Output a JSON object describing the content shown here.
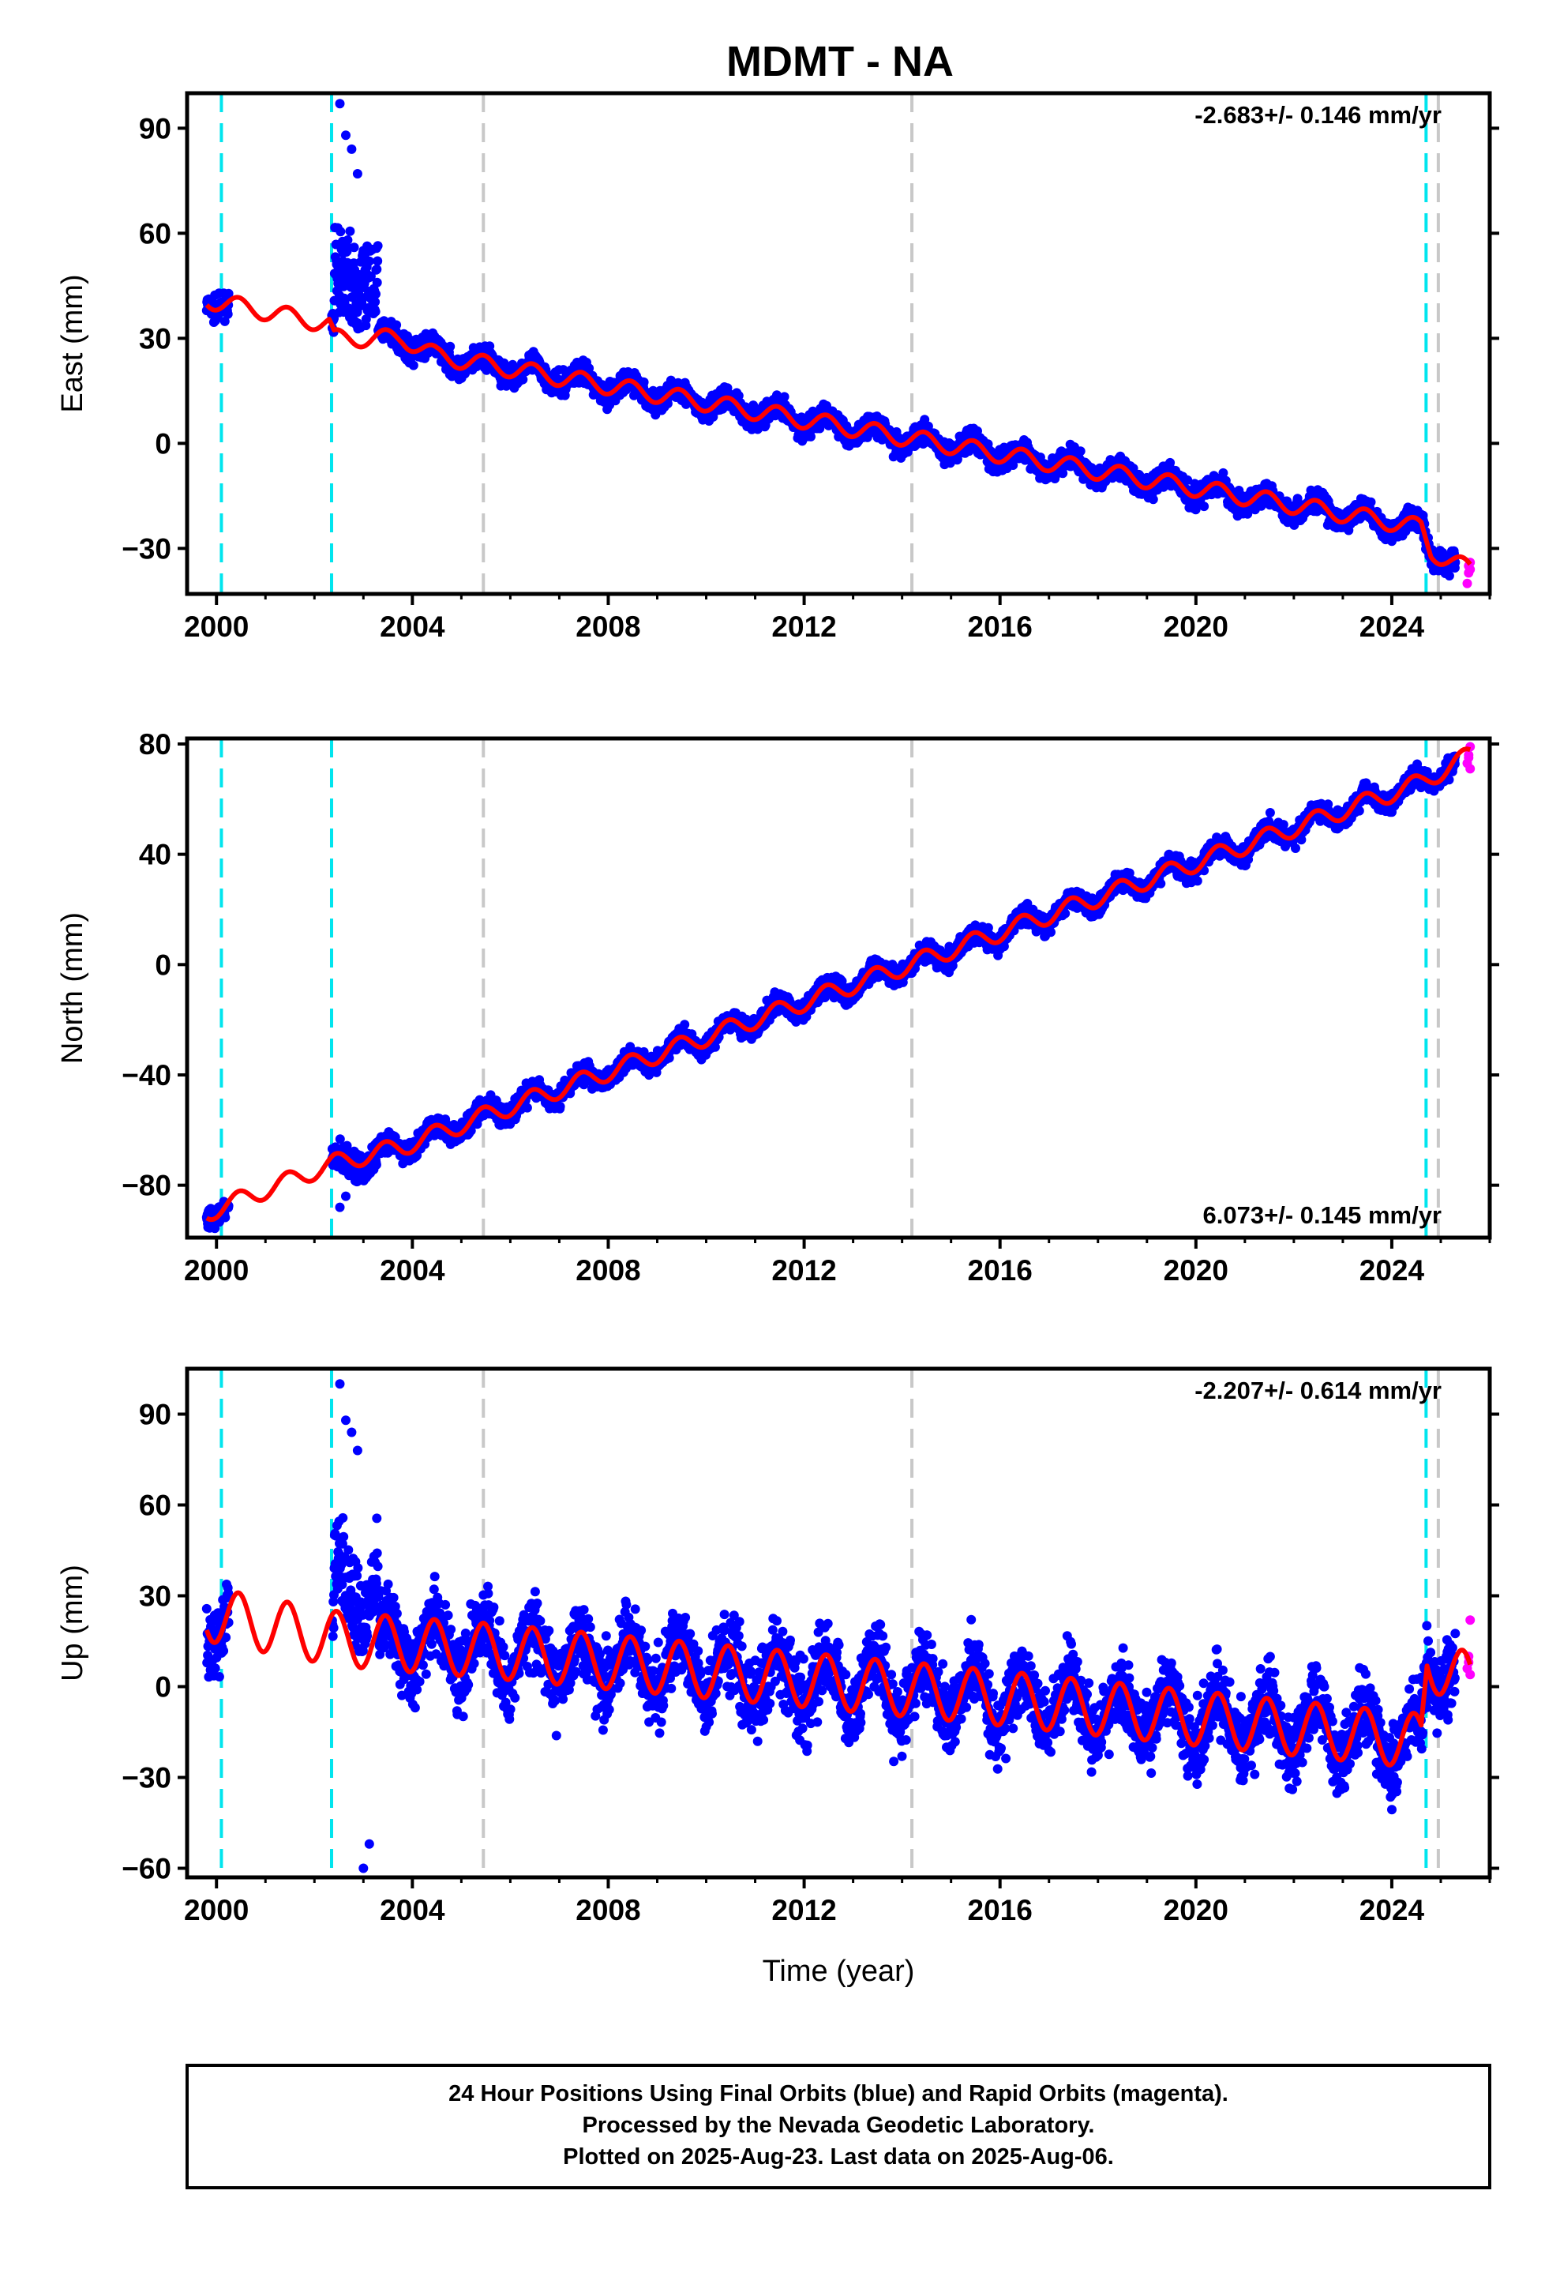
{
  "colors": {
    "final": "#0000ff",
    "rapid": "#ff00ff",
    "model": "#ff0000",
    "equipment_change": "#00e5ee",
    "earthquake": "#c8c8c8"
  },
  "footer": {
    "line1": "24 Hour Positions Using Final Orbits (blue) and Rapid Orbits (magenta).",
    "line2": "Processed by the Nevada Geodetic Laboratory.",
    "line3": "Plotted on 2025-Aug-23. Last data on 2025-Aug-06."
  },
  "chart_data": {
    "type": "scatter",
    "title": "MDMT - NA",
    "xlabel": "Time (year)",
    "x_range": [
      1999.4,
      2026.0
    ],
    "x_ticks": [
      2000,
      2004,
      2008,
      2012,
      2016,
      2020,
      2024
    ],
    "data_start": 1999.8,
    "data_end": 2025.6,
    "rapid_start": 2025.3,
    "cyan_lines": [
      2000.1,
      2002.35,
      2024.7
    ],
    "gray_lines": [
      2005.45,
      2014.2,
      2024.95
    ],
    "panels": [
      {
        "name": "east",
        "ylabel": "East (mm)",
        "ylim": [
          -43,
          100
        ],
        "y_ticks": [
          90,
          60,
          30,
          0,
          -30
        ],
        "velocity_label": "-2.683+/- 0.146 mm/yr",
        "velocity_pos": "top-right",
        "model": {
          "trend_keypoints": [
            [
              1999.8,
              41
            ],
            [
              2002.3,
              34
            ],
            [
              2002.4,
              30
            ],
            [
              2003.8,
              30
            ],
            [
              2004.5,
              25
            ],
            [
              2024.6,
              -24
            ],
            [
              2024.8,
              -31
            ],
            [
              2025.6,
              -36
            ]
          ],
          "annual_amplitude": 2.5
        },
        "scatter": {
          "noise": 1.6,
          "disturbed_window": [
            2002.4,
            2003.3
          ],
          "disturbed_offset": [
            5,
            35
          ],
          "disturbed_extremes": [
            97,
            88,
            84,
            77
          ],
          "rapid_values": [
            -34,
            -37,
            -40,
            -36,
            -35
          ]
        }
      },
      {
        "name": "north",
        "ylabel": "North (mm)",
        "ylim": [
          -99,
          82
        ],
        "y_ticks": [
          80,
          40,
          0,
          -40,
          -80
        ],
        "velocity_label": "6.073+/- 0.145 mm/yr",
        "velocity_pos": "bottom-right",
        "model": {
          "trend_keypoints": [
            [
              1999.8,
              -90
            ],
            [
              2002.4,
              -72
            ],
            [
              2003.8,
              -66
            ],
            [
              2005.45,
              -55
            ],
            [
              2024.6,
              66
            ],
            [
              2025.6,
              76
            ]
          ],
          "annual_amplitude": 3.3
        },
        "scatter": {
          "noise": 1.8,
          "disturbed_window": [
            2002.4,
            2003.3
          ],
          "disturbed_offset": [
            -6,
            6
          ],
          "disturbed_extremes": [
            -88,
            -84
          ],
          "rapid_values": [
            79,
            76,
            73,
            71,
            75
          ]
        }
      },
      {
        "name": "up",
        "ylabel": "Up (mm)",
        "ylim": [
          -63,
          105
        ],
        "y_ticks": [
          90,
          60,
          30,
          0,
          -30,
          -60
        ],
        "velocity_label": "-2.207+/- 0.614 mm/yr",
        "velocity_pos": "top-right",
        "model": {
          "trend_keypoints": [
            [
              1999.8,
              24
            ],
            [
              2002.4,
              16
            ],
            [
              2003.8,
              14
            ],
            [
              2005.45,
              12
            ],
            [
              2015.5,
              -3
            ],
            [
              2024.6,
              -18
            ],
            [
              2024.72,
              8
            ],
            [
              2025.6,
              2
            ]
          ],
          "annual_amplitude": 9
        },
        "scatter": {
          "noise": 6,
          "disturbed_window": [
            2002.4,
            2003.3
          ],
          "disturbed_offset": [
            5,
            40
          ],
          "disturbed_extremes": [
            100,
            88,
            84,
            78,
            -60,
            -52
          ],
          "rapid_values": [
            22,
            10,
            6,
            4,
            8
          ]
        }
      }
    ]
  }
}
